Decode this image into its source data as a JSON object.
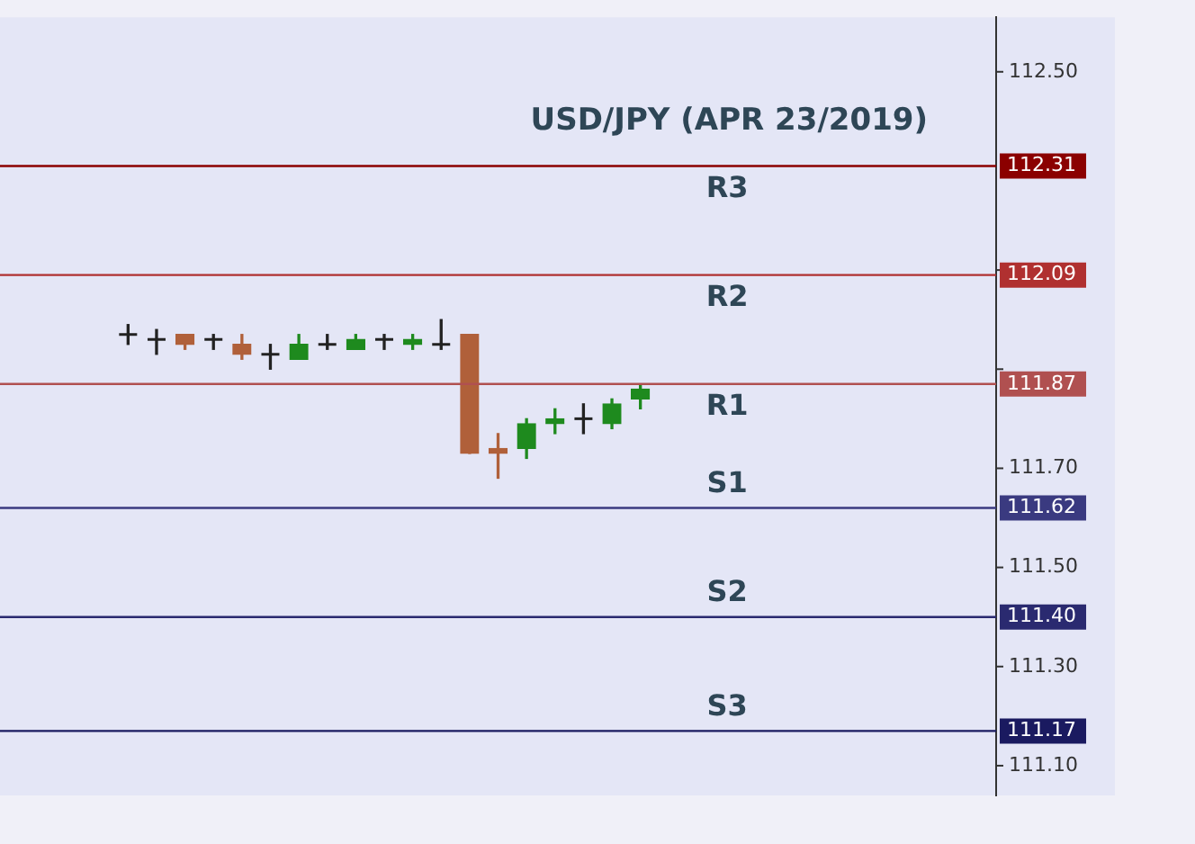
{
  "chart_data": {
    "type": "candlestick",
    "title": "USD/JPY (APR 23/2019)",
    "categories": [
      null,
      null,
      null,
      null,
      null,
      null,
      null,
      null,
      null,
      null,
      null,
      null,
      null,
      null,
      null,
      null,
      null,
      null,
      null,
      null,
      null,
      null,
      null,
      null,
      null,
      null,
      null,
      null,
      null,
      null,
      null,
      null,
      null,
      null,
      null
    ],
    "ohlc": [
      null,
      null,
      null,
      null,
      [
        111.97,
        111.99,
        111.95,
        111.97
      ],
      [
        111.96,
        111.98,
        111.93,
        111.96
      ],
      [
        111.97,
        111.97,
        111.94,
        111.95
      ],
      [
        111.96,
        111.97,
        111.94,
        111.96
      ],
      [
        111.95,
        111.97,
        111.92,
        111.93
      ],
      [
        111.93,
        111.95,
        111.9,
        111.93
      ],
      [
        111.92,
        111.97,
        111.92,
        111.95
      ],
      [
        111.95,
        111.97,
        111.94,
        111.95
      ],
      [
        111.94,
        111.97,
        111.94,
        111.96
      ],
      [
        111.96,
        111.97,
        111.94,
        111.96
      ],
      [
        111.95,
        111.97,
        111.94,
        111.96
      ],
      [
        111.95,
        112.0,
        111.94,
        111.95
      ],
      [
        111.97,
        111.97,
        111.73,
        111.73
      ],
      [
        111.74,
        111.77,
        111.68,
        111.73
      ],
      [
        111.74,
        111.8,
        111.72,
        111.79
      ],
      [
        111.79,
        111.82,
        111.77,
        111.8
      ],
      [
        111.8,
        111.83,
        111.77,
        111.8
      ],
      [
        111.79,
        111.84,
        111.78,
        111.83
      ],
      [
        111.84,
        111.87,
        111.82,
        111.86
      ],
      null,
      null,
      null,
      null,
      null,
      null,
      null,
      null,
      null,
      null,
      null,
      null
    ],
    "colors": [
      null,
      null,
      null,
      null,
      "#222222",
      "#222222",
      "#b0603a",
      "#222222",
      "#b0603a",
      "#222222",
      "#1e8a1e",
      "#222222",
      "#1e8a1e",
      "#222222",
      "#1e8a1e",
      "#222222",
      "#b0603a",
      "#b0603a",
      "#1e8a1e",
      "#1e8a1e",
      "#222222",
      "#1e8a1e",
      "#1e8a1e",
      null,
      null,
      null,
      null,
      null,
      null,
      null,
      null,
      null,
      null,
      null,
      null
    ],
    "ylim": [
      111.04,
      112.61
    ],
    "yticks": [
      {
        "value": 112.5,
        "label": "112.50"
      },
      {
        "value": 112.1,
        "label": null
      },
      {
        "value": 111.9,
        "label": null
      },
      {
        "value": 111.7,
        "label": "111.70"
      },
      {
        "value": 111.5,
        "label": "111.50"
      },
      {
        "value": 111.3,
        "label": "111.30"
      },
      {
        "value": 111.1,
        "label": "111.10"
      }
    ],
    "y2lim": [
      111.04,
      112.61
    ],
    "y2ticks": [
      {
        "value": 112.31,
        "label": "112.31"
      },
      {
        "value": 112.09,
        "label": "112.09"
      },
      {
        "value": 111.87,
        "label": "111.87"
      },
      {
        "value": 111.62,
        "label": "111.62"
      },
      {
        "value": 111.4,
        "label": "111.40"
      },
      {
        "value": 111.17,
        "label": "111.17"
      }
    ],
    "grid": false,
    "ref_lines": [
      {
        "axis": "y",
        "value": 112.31,
        "label": "R3",
        "color": "#8b0000"
      },
      {
        "axis": "y",
        "value": 112.09,
        "label": "R2",
        "color": "#b03030"
      },
      {
        "axis": "y",
        "value": 111.87,
        "label": "R1",
        "color": "#b05050"
      },
      {
        "axis": "y",
        "value": 111.62,
        "label": "S1",
        "color": "#3a3a80"
      },
      {
        "axis": "y",
        "value": 111.4,
        "label": "S2",
        "color": "#2a2a70"
      },
      {
        "axis": "y",
        "value": 111.17,
        "label": "S3",
        "color": "#1a1a60"
      }
    ]
  }
}
